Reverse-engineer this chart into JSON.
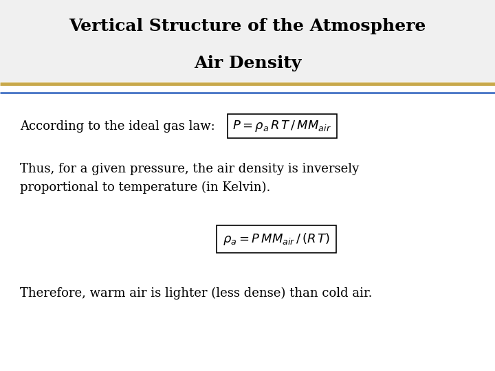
{
  "title_line1": "Vertical Structure of the Atmosphere",
  "title_line2": "Air Density",
  "bg_color": "#ffffff",
  "title_bg_color": "#f0f0f0",
  "separator_color_gold": "#c8a84b",
  "separator_color_blue": "#4472c4",
  "label1": "According to the ideal gas law:",
  "formula1": "$P = \\rho_a\\, R\\, T\\, /\\, \\mathit{MM}_{air}$",
  "body_text": "Thus, for a given pressure, the air density is inversely\nproportional to temperature (in Kelvin).",
  "formula2": "$\\rho_a = P\\, \\mathit{MM}_{air}\\, /\\, (R\\, T)$",
  "conclusion": "Therefore, warm air is lighter (less dense) than cold air.",
  "title_fontsize": 18,
  "body_fontsize": 13,
  "formula_fontsize": 13,
  "label_fontsize": 13
}
